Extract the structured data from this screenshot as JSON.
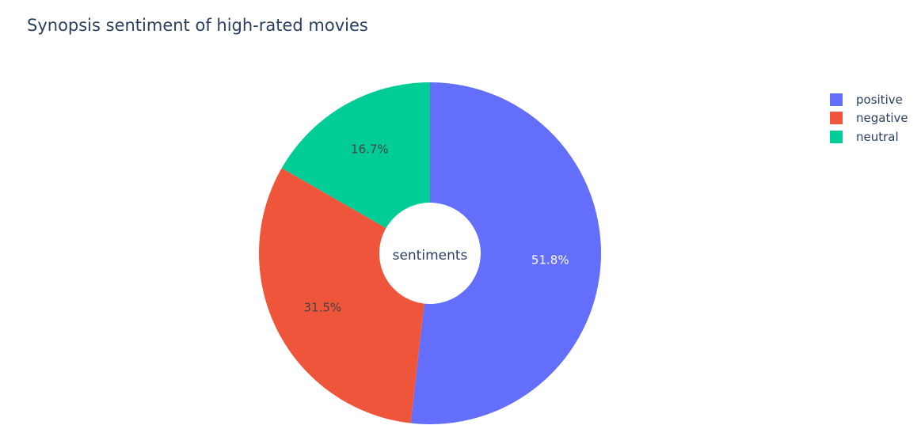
{
  "chart_data": {
    "type": "pie",
    "title": "Synopsis sentiment of high-rated movies",
    "center_label": "sentiments",
    "labels": [
      "positive",
      "negative",
      "neutral"
    ],
    "values": [
      51.8,
      31.5,
      16.7
    ],
    "value_labels": [
      "51.8%",
      "31.5%",
      "16.7%"
    ],
    "colors": [
      "#636efa",
      "#ef553b",
      "#00cc96"
    ],
    "label_colors": [
      "#ffffff",
      "#444444",
      "#444444"
    ],
    "legend_position": "top-right",
    "order": "clockwise from top"
  }
}
